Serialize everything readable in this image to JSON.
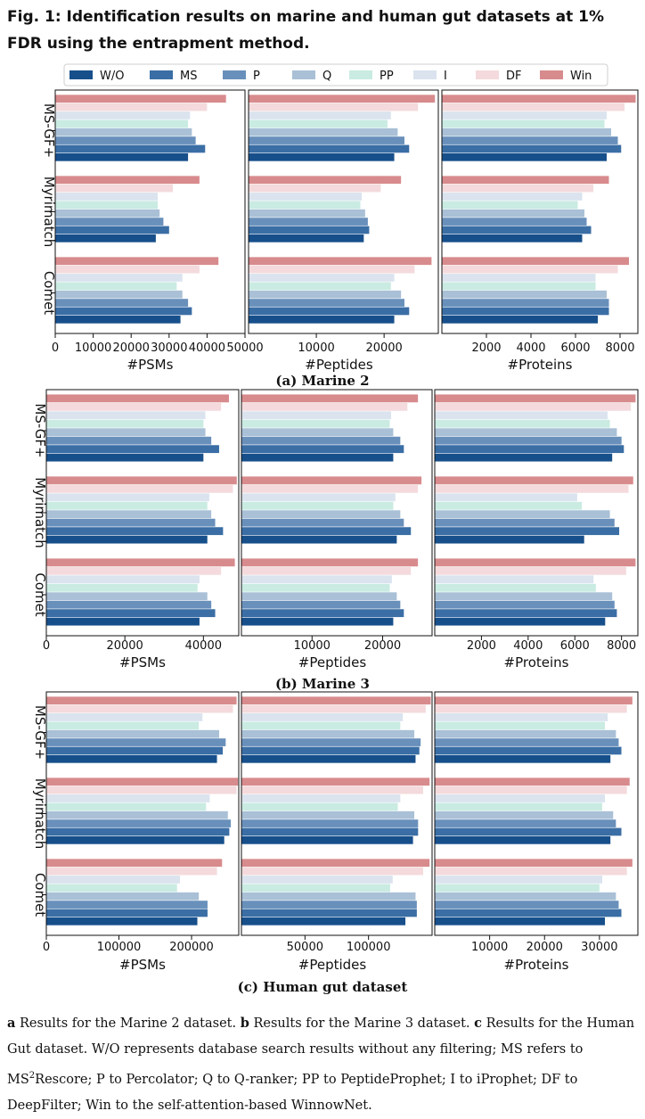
{
  "figure": {
    "title": "Fig. 1: Identification results on marine and human gut datasets at 1% FDR using the entrapment method.",
    "caption": {
      "a_label": "a",
      "a_text": " Results for the Marine 2 dataset. ",
      "b_label": "b",
      "b_text": " Results for the Marine 3 dataset. ",
      "c_label": "c",
      "c_text": " Results for the Human Gut dataset. W/O represents database search results without any filtering; MS refers to MS",
      "sup": "2",
      "rest": "Rescore; P to Percolator; Q to Q-ranker; PP to PeptideProphet; I to iProphet; DF to DeepFilter; Win to the self-attention-based WinnowNet."
    }
  },
  "legend": [
    {
      "label": "W/O",
      "color": "#174f8b"
    },
    {
      "label": "MS",
      "color": "#3a6ea5"
    },
    {
      "label": "P",
      "color": "#6990bb"
    },
    {
      "label": "Q",
      "color": "#a9c0d6"
    },
    {
      "label": "PP",
      "color": "#c9ebe2"
    },
    {
      "label": "I",
      "color": "#dae3ee"
    },
    {
      "label": "DF",
      "color": "#f4dadc"
    },
    {
      "label": "Win",
      "color": "#d88b8d"
    }
  ],
  "chart_data": [
    {
      "type": "bar",
      "orientation": "horizontal",
      "subtitle": "(a) Marine 2",
      "categories": [
        "MS-GF+",
        "Myrimatch",
        "Comet"
      ],
      "panels": [
        {
          "xlabel": "#PSMs",
          "xlim": [
            0,
            50000
          ],
          "ticks": [
            0,
            10000,
            20000,
            30000,
            40000,
            50000
          ],
          "tick_labels": [
            "0",
            "10000",
            "20000",
            "30000",
            "40000",
            "50000"
          ],
          "values": {
            "MS-GF+": [
              35000,
              39500,
              37000,
              36000,
              35000,
              35500,
              40000,
              45000
            ],
            "Myrimatch": [
              26500,
              30000,
              28500,
              27500,
              27000,
              27000,
              31000,
              38000
            ],
            "Comet": [
              33000,
              36000,
              35000,
              33500,
              32000,
              33500,
              38000,
              43000
            ]
          }
        },
        {
          "xlabel": "#Peptides",
          "xlim": [
            0,
            28000
          ],
          "ticks": [
            10000,
            20000
          ],
          "tick_labels": [
            "10000",
            "20000"
          ],
          "values": {
            "MS-GF+": [
              21500,
              23700,
              23000,
              22000,
              20500,
              21000,
              25000,
              27500
            ],
            "Myrimatch": [
              17000,
              17800,
              17600,
              17200,
              16500,
              16700,
              19500,
              22500
            ],
            "Comet": [
              21500,
              23700,
              23000,
              22500,
              21000,
              21500,
              24500,
              27000
            ]
          }
        },
        {
          "xlabel": "#Proteins",
          "xlim": [
            0,
            8800
          ],
          "ticks": [
            2000,
            4000,
            6000,
            8000
          ],
          "tick_labels": [
            "2000",
            "4000",
            "6000",
            "8000"
          ],
          "values": {
            "MS-GF+": [
              7400,
              8050,
              7900,
              7600,
              7300,
              7400,
              8200,
              8700
            ],
            "Myrimatch": [
              6300,
              6700,
              6500,
              6400,
              6100,
              6300,
              6800,
              7500
            ],
            "Comet": [
              7000,
              7500,
              7500,
              7400,
              6900,
              6900,
              7900,
              8400
            ]
          }
        }
      ]
    },
    {
      "type": "bar",
      "orientation": "horizontal",
      "subtitle": "(b) Marine 3",
      "categories": [
        "MS-GF+",
        "Myrimatch",
        "Comet"
      ],
      "panels": [
        {
          "xlabel": "#PSMs",
          "xlim": [
            0,
            49000
          ],
          "ticks": [
            0,
            20000,
            40000
          ],
          "tick_labels": [
            "0",
            "20000",
            "40000"
          ],
          "values": {
            "MS-GF+": [
              40000,
              44000,
              42000,
              40500,
              40000,
              40500,
              44500,
              46500
            ],
            "Myrimatch": [
              41000,
              45000,
              43000,
              42000,
              41000,
              41500,
              47500,
              48500
            ],
            "Comet": [
              39000,
              43000,
              42000,
              41000,
              38500,
              39000,
              44500,
              48000
            ]
          }
        },
        {
          "xlabel": "#Peptides",
          "xlim": [
            0,
            27000
          ],
          "ticks": [
            10000,
            20000
          ],
          "tick_labels": [
            "10000",
            "20000"
          ],
          "values": {
            "MS-GF+": [
              21500,
              23000,
              22500,
              21500,
              21000,
              21200,
              23500,
              25000
            ],
            "Myrimatch": [
              22000,
              24000,
              23000,
              22500,
              21500,
              21800,
              25000,
              25500
            ],
            "Comet": [
              21500,
              23000,
              22500,
              22000,
              21000,
              21300,
              24000,
              25000
            ]
          }
        },
        {
          "xlabel": "#Proteins",
          "xlim": [
            0,
            8700
          ],
          "ticks": [
            2000,
            4000,
            6000,
            8000
          ],
          "tick_labels": [
            "2000",
            "4000",
            "6000",
            "8000"
          ],
          "values": {
            "MS-GF+": [
              7600,
              8100,
              8000,
              7800,
              7500,
              7400,
              8400,
              8600
            ],
            "Myrimatch": [
              6400,
              7900,
              7700,
              7500,
              6300,
              6100,
              8300,
              8500
            ],
            "Comet": [
              7300,
              7800,
              7700,
              7600,
              6900,
              6800,
              8200,
              8600
            ]
          }
        }
      ]
    },
    {
      "type": "bar",
      "orientation": "horizontal",
      "subtitle": "(c) Human gut dataset",
      "categories": [
        "MS-GF+",
        "Myrimatch",
        "Comet"
      ],
      "panels": [
        {
          "xlabel": "#PSMs",
          "xlim": [
            0,
            265000
          ],
          "ticks": [
            0,
            100000,
            200000
          ],
          "tick_labels": [
            "0",
            "100000",
            "200000"
          ],
          "values": {
            "MS-GF+": [
              235000,
              243000,
              247000,
              238000,
              210000,
              215000,
              257000,
              262000
            ],
            "Myrimatch": [
              245000,
              252000,
              254000,
              250000,
              220000,
              225000,
              262000,
              264000
            ],
            "Comet": [
              208000,
              222000,
              222000,
              210000,
              180000,
              184000,
              235000,
              242000
            ]
          }
        },
        {
          "xlabel": "#Peptides",
          "xlim": [
            0,
            150000
          ],
          "ticks": [
            50000,
            100000
          ],
          "tick_labels": [
            "50000",
            "100000"
          ],
          "values": {
            "MS-GF+": [
              137000,
              140000,
              141000,
              136000,
              125000,
              127000,
              145000,
              149000
            ],
            "Myrimatch": [
              135000,
              139000,
              139000,
              136000,
              123000,
              125000,
              143000,
              148000
            ],
            "Comet": [
              129000,
              138000,
              138000,
              137000,
              117000,
              119000,
              143000,
              148000
            ]
          }
        },
        {
          "xlabel": "#Proteins",
          "xlim": [
            0,
            37000
          ],
          "ticks": [
            10000,
            20000,
            30000
          ],
          "tick_labels": [
            "10000",
            "20000",
            "30000"
          ],
          "values": {
            "MS-GF+": [
              32000,
              34000,
              33500,
              33000,
              31000,
              31500,
              35000,
              36000
            ],
            "Myrimatch": [
              32000,
              34000,
              33000,
              32500,
              30500,
              31000,
              35000,
              35500
            ],
            "Comet": [
              31000,
              34000,
              33500,
              33000,
              30000,
              30500,
              35000,
              36000
            ]
          }
        }
      ]
    }
  ]
}
